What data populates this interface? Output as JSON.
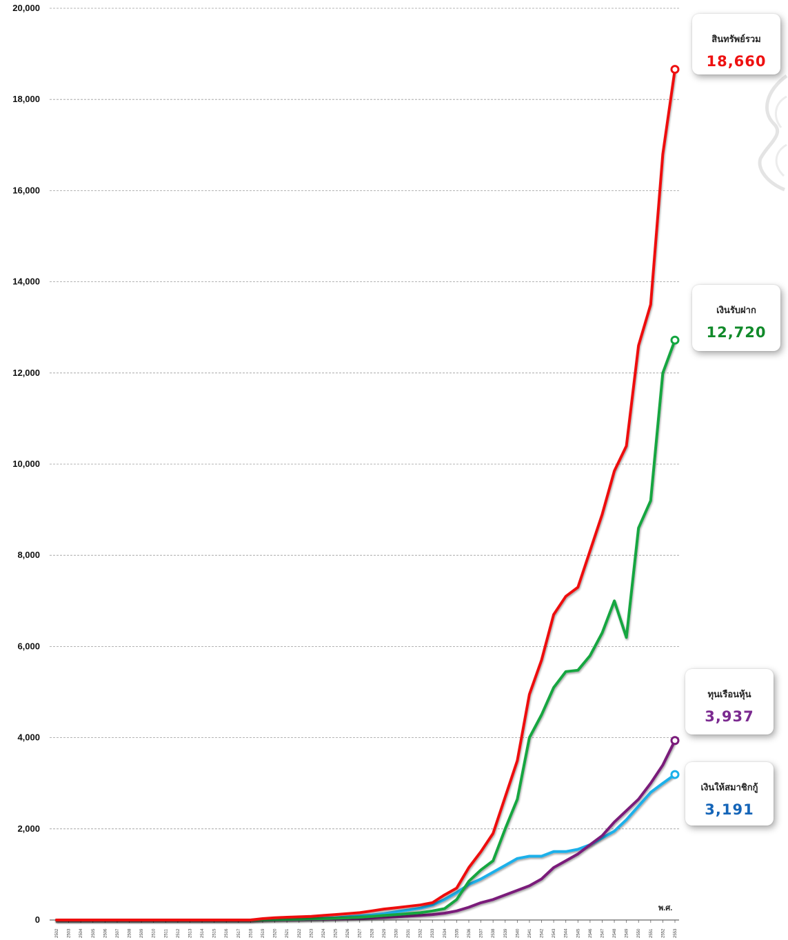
{
  "chart_data": {
    "type": "line",
    "ylim": [
      0,
      20000
    ],
    "yticks": [
      "0",
      "2,000",
      "4,000",
      "6,000",
      "8,000",
      "10,000",
      "12,000",
      "14,000",
      "16,000",
      "18,000",
      "20,000"
    ],
    "x_unit_label": "พ.ศ.",
    "categories": [
      "2502",
      "2503",
      "2504",
      "2505",
      "2506",
      "2507",
      "2508",
      "2509",
      "2510",
      "2511",
      "2512",
      "2513",
      "2514",
      "2515",
      "2516",
      "2517",
      "2518",
      "2519",
      "2520",
      "2521",
      "2522",
      "2523",
      "2524",
      "2525",
      "2526",
      "2527",
      "2528",
      "2529",
      "2530",
      "2531",
      "2532",
      "2533",
      "2534",
      "2535",
      "2536",
      "2537",
      "2538",
      "2539",
      "2540",
      "2541",
      "2542",
      "2543",
      "2544",
      "2545",
      "2546",
      "2547",
      "2548",
      "2549",
      "2550",
      "2551",
      "2552",
      "2553"
    ],
    "series": [
      {
        "name": "สินทรัพย์รวม",
        "color": "#ee1111",
        "values": [
          0,
          0,
          0,
          0,
          0,
          0,
          0,
          0,
          0,
          0,
          0,
          0,
          0,
          0,
          0,
          0,
          0,
          30,
          50,
          60,
          70,
          80,
          100,
          120,
          140,
          160,
          200,
          240,
          270,
          300,
          330,
          380,
          550,
          700,
          1150,
          1500,
          1900,
          2700,
          3500,
          4950,
          5700,
          6700,
          7100,
          7300,
          8100,
          8900,
          9850,
          10400,
          12600,
          13500,
          16800,
          18660
        ]
      },
      {
        "name": "เงินรับฝาก",
        "color": "#13a640",
        "values": [
          0,
          0,
          0,
          0,
          0,
          0,
          0,
          0,
          0,
          0,
          0,
          0,
          0,
          0,
          0,
          0,
          0,
          5,
          10,
          15,
          20,
          25,
          30,
          40,
          50,
          60,
          80,
          100,
          120,
          140,
          160,
          200,
          250,
          450,
          850,
          1100,
          1300,
          2000,
          2650,
          4000,
          4500,
          5100,
          5450,
          5480,
          5800,
          6300,
          7000,
          6200,
          8600,
          9200,
          12000,
          12720
        ]
      },
      {
        "name": "ทุนเรือนหุ้น",
        "color": "#7a1a7a",
        "values": [
          0,
          0,
          0,
          0,
          0,
          0,
          0,
          0,
          0,
          0,
          0,
          0,
          0,
          0,
          0,
          0,
          0,
          5,
          8,
          10,
          12,
          15,
          18,
          22,
          28,
          35,
          45,
          55,
          70,
          85,
          100,
          120,
          150,
          200,
          280,
          380,
          450,
          550,
          650,
          750,
          900,
          1150,
          1300,
          1450,
          1650,
          1850,
          2150,
          2400,
          2650,
          3000,
          3400,
          3937
        ]
      },
      {
        "name": "เงินให้สมาชิกกู้",
        "color": "#1ab0ea",
        "values": [
          0,
          0,
          0,
          0,
          0,
          0,
          0,
          0,
          0,
          0,
          0,
          0,
          0,
          0,
          0,
          0,
          0,
          10,
          15,
          20,
          25,
          30,
          40,
          50,
          70,
          90,
          110,
          140,
          180,
          220,
          260,
          330,
          450,
          600,
          780,
          900,
          1050,
          1200,
          1350,
          1400,
          1400,
          1500,
          1500,
          1550,
          1650,
          1800,
          1950,
          2200,
          2500,
          2800,
          3000,
          3191
        ]
      }
    ]
  },
  "cards": [
    {
      "title": "สินทรัพย์รวม",
      "value": "18,660",
      "color": "#ee1111"
    },
    {
      "title": "เงินรับฝาก",
      "value": "12,720",
      "color": "#118a2a"
    },
    {
      "title": "ทุนเรือนหุ้น",
      "value": "3,937",
      "color": "#7b2a90"
    },
    {
      "title": "เงินให้สมาชิกกู้",
      "value": "3,191",
      "color": "#1565b8"
    }
  ]
}
